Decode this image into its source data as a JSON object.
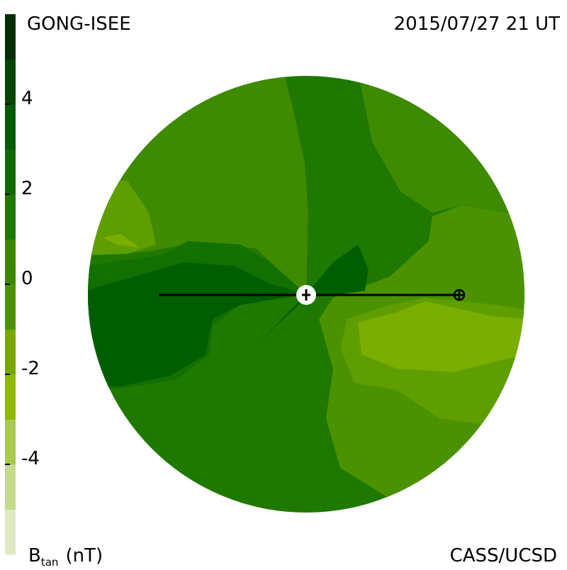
{
  "header": {
    "source": "GONG-ISEE",
    "datetime": "2015/07/27 21 UT"
  },
  "footer": {
    "quantity": "B",
    "subscript": "tan",
    "unit": "(nT)",
    "credit": "CASS/UCSD"
  },
  "colorbar": {
    "range": [
      -6,
      6
    ],
    "ticks": [
      4,
      2,
      0,
      -2,
      -4
    ],
    "colors": [
      "#dfe9c4",
      "#c6da8c",
      "#a8c850",
      "#8fb800",
      "#78a800",
      "#4c9200",
      "#3a8800",
      "#1e7800",
      "#0f6a00",
      "#005a00",
      "#004500",
      "#003000"
    ]
  }
}
